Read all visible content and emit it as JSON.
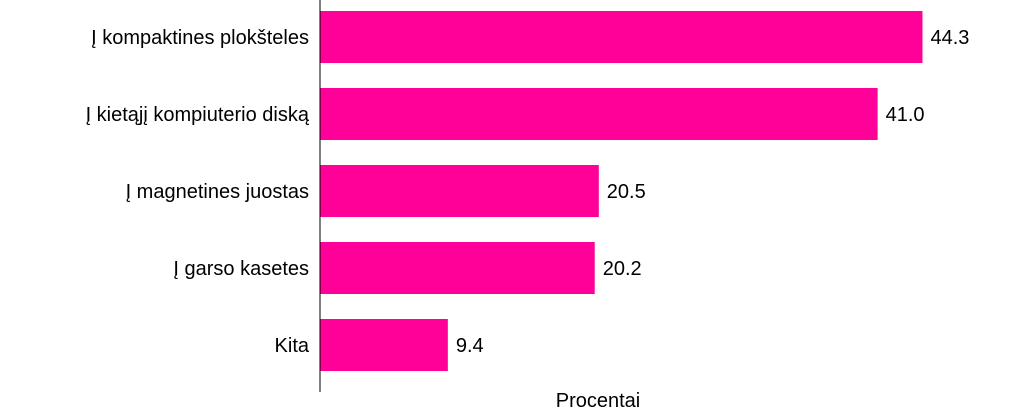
{
  "chart_data": {
    "type": "bar",
    "orientation": "horizontal",
    "title": "",
    "xlabel": "Procentai",
    "ylabel": "",
    "categories": [
      "Į kompaktines plokšteles",
      "Į kietąjį kompiuterio diską",
      "Į magnetines juostas",
      "Į garso kasetes",
      "Kita"
    ],
    "values": [
      44.3,
      41.0,
      20.5,
      20.2,
      9.4
    ],
    "value_labels": [
      "44.3",
      "41.0",
      "20.5",
      "20.2",
      "9.4"
    ],
    "xlim": [
      0,
      50
    ],
    "grid": false,
    "legend": "none",
    "colors": {
      "bar": "#ff0099",
      "axis": "#000000",
      "text": "#000000"
    }
  }
}
